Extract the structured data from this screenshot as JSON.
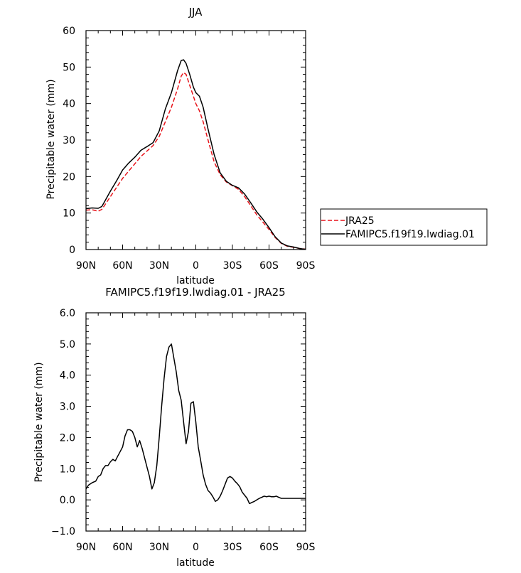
{
  "chart_data": [
    {
      "type": "line",
      "title": "JJA",
      "xlabel": "latitude",
      "ylabel": "Precipitable water (mm)",
      "xlim": [
        90,
        -90
      ],
      "ylim": [
        0,
        60
      ],
      "x_ticks": [
        {
          "value": 90,
          "label": "90N"
        },
        {
          "value": 60,
          "label": "60N"
        },
        {
          "value": 30,
          "label": "30N"
        },
        {
          "value": 0,
          "label": "0"
        },
        {
          "value": -30,
          "label": "30S"
        },
        {
          "value": -60,
          "label": "60S"
        },
        {
          "value": -90,
          "label": "90S"
        }
      ],
      "y_ticks": [
        {
          "value": 0,
          "label": "0"
        },
        {
          "value": 10,
          "label": "10"
        },
        {
          "value": 20,
          "label": "20"
        },
        {
          "value": 30,
          "label": "30"
        },
        {
          "value": 40,
          "label": "40"
        },
        {
          "value": 50,
          "label": "50"
        },
        {
          "value": 60,
          "label": "60"
        }
      ],
      "legend_position": "right",
      "series": [
        {
          "name": "JRA25",
          "color": "#e8141b",
          "dash": "dashed",
          "x": [
            90,
            85,
            80,
            77,
            75,
            70,
            65,
            60,
            55,
            50,
            45,
            40,
            35,
            30,
            25,
            20,
            15,
            12,
            10,
            8,
            5,
            2,
            0,
            -3,
            -6,
            -10,
            -15,
            -20,
            -25,
            -30,
            -35,
            -40,
            -45,
            -50,
            -55,
            -60,
            -65,
            -70,
            -75,
            -80,
            -85,
            -88,
            -90
          ],
          "y": [
            10.8,
            10.9,
            10.5,
            11.0,
            12.0,
            14.5,
            17.0,
            19.5,
            21.5,
            23.5,
            25.5,
            27.0,
            28.5,
            31.0,
            35.0,
            39.0,
            44.0,
            47.5,
            48.5,
            48.0,
            45.0,
            42.0,
            40.0,
            38.0,
            35.0,
            30.0,
            24.0,
            20.5,
            18.5,
            17.5,
            16.5,
            14.5,
            12.0,
            9.5,
            7.5,
            5.5,
            3.3,
            1.7,
            0.9,
            0.6,
            0.3,
            0.2,
            0.1
          ]
        },
        {
          "name": "FAMIPC5.f19f19.lwdiag.01",
          "color": "#000000",
          "dash": "solid",
          "x": [
            90,
            85,
            80,
            77,
            75,
            70,
            65,
            60,
            55,
            50,
            45,
            40,
            35,
            30,
            25,
            20,
            15,
            12,
            10,
            8,
            5,
            2,
            0,
            -3,
            -6,
            -10,
            -15,
            -20,
            -25,
            -30,
            -35,
            -40,
            -45,
            -50,
            -55,
            -60,
            -65,
            -70,
            -75,
            -80,
            -85,
            -88,
            -90
          ],
          "y": [
            11.2,
            11.4,
            11.3,
            11.8,
            13.0,
            16.0,
            18.8,
            21.8,
            23.7,
            25.3,
            27.2,
            28.2,
            29.3,
            32.5,
            38.5,
            43.0,
            49.0,
            51.8,
            52.0,
            51.0,
            48.0,
            44.5,
            43.0,
            42.0,
            39.0,
            33.0,
            26.0,
            21.0,
            18.7,
            17.6,
            16.9,
            15.2,
            12.8,
            10.3,
            8.3,
            6.0,
            3.5,
            1.8,
            1.0,
            0.7,
            0.3,
            0.15,
            0.1
          ]
        }
      ]
    },
    {
      "type": "line",
      "title": "FAMIPC5.f19f19.lwdiag.01 - JRA25",
      "xlabel": "latitude",
      "ylabel": "Precipitable water (mm)",
      "xlim": [
        90,
        -90
      ],
      "ylim": [
        -1.0,
        6.0
      ],
      "x_ticks": [
        {
          "value": 90,
          "label": "90N"
        },
        {
          "value": 60,
          "label": "60N"
        },
        {
          "value": 30,
          "label": "30N"
        },
        {
          "value": 0,
          "label": "0"
        },
        {
          "value": -30,
          "label": "30S"
        },
        {
          "value": -60,
          "label": "60S"
        },
        {
          "value": -90,
          "label": "90S"
        }
      ],
      "y_ticks": [
        {
          "value": -1.0,
          "label": "−1.0"
        },
        {
          "value": 0.0,
          "label": "0.0"
        },
        {
          "value": 1.0,
          "label": "1.0"
        },
        {
          "value": 2.0,
          "label": "2.0"
        },
        {
          "value": 3.0,
          "label": "3.0"
        },
        {
          "value": 4.0,
          "label": "4.0"
        },
        {
          "value": 5.0,
          "label": "5.0"
        },
        {
          "value": 6.0,
          "label": "6.0"
        }
      ],
      "series": [
        {
          "color": "#000000",
          "dash": "solid",
          "x": [
            90,
            88,
            85,
            82,
            80,
            78,
            76,
            74,
            72,
            70,
            68,
            66,
            64,
            62,
            60,
            58,
            56,
            54,
            52,
            50,
            48,
            46,
            44,
            42,
            40,
            38,
            36,
            34,
            32,
            30,
            28,
            26,
            24,
            22,
            20,
            18,
            16,
            14,
            12,
            10,
            8,
            6,
            4,
            2,
            0,
            -2,
            -4,
            -6,
            -8,
            -10,
            -12,
            -14,
            -16,
            -18,
            -20,
            -22,
            -24,
            -26,
            -28,
            -30,
            -32,
            -34,
            -36,
            -38,
            -40,
            -42,
            -44,
            -46,
            -48,
            -50,
            -52,
            -54,
            -56,
            -58,
            -60,
            -62,
            -64,
            -66,
            -68,
            -70,
            -72,
            -74,
            -76,
            -78,
            -80,
            -82,
            -84,
            -86,
            -88,
            -90
          ],
          "y": [
            0.35,
            0.47,
            0.55,
            0.6,
            0.75,
            0.8,
            1.0,
            1.1,
            1.1,
            1.22,
            1.3,
            1.25,
            1.4,
            1.55,
            1.7,
            2.05,
            2.25,
            2.25,
            2.2,
            2.0,
            1.7,
            1.9,
            1.65,
            1.35,
            1.05,
            0.75,
            0.35,
            0.55,
            1.1,
            2.0,
            3.0,
            3.9,
            4.6,
            4.9,
            5.0,
            4.55,
            4.1,
            3.5,
            3.2,
            2.5,
            1.8,
            2.2,
            3.1,
            3.15,
            2.5,
            1.7,
            1.25,
            0.8,
            0.5,
            0.3,
            0.22,
            0.1,
            -0.05,
            0.0,
            0.12,
            0.3,
            0.5,
            0.7,
            0.75,
            0.7,
            0.6,
            0.52,
            0.42,
            0.25,
            0.15,
            0.05,
            -0.12,
            -0.08,
            -0.05,
            0.0,
            0.05,
            0.08,
            0.12,
            0.1,
            0.12,
            0.1,
            0.1,
            0.12,
            0.08,
            0.05,
            0.05,
            0.05,
            0.05,
            0.05,
            0.05,
            0.05,
            0.05,
            0.05,
            0.05,
            0.05
          ]
        }
      ]
    }
  ]
}
